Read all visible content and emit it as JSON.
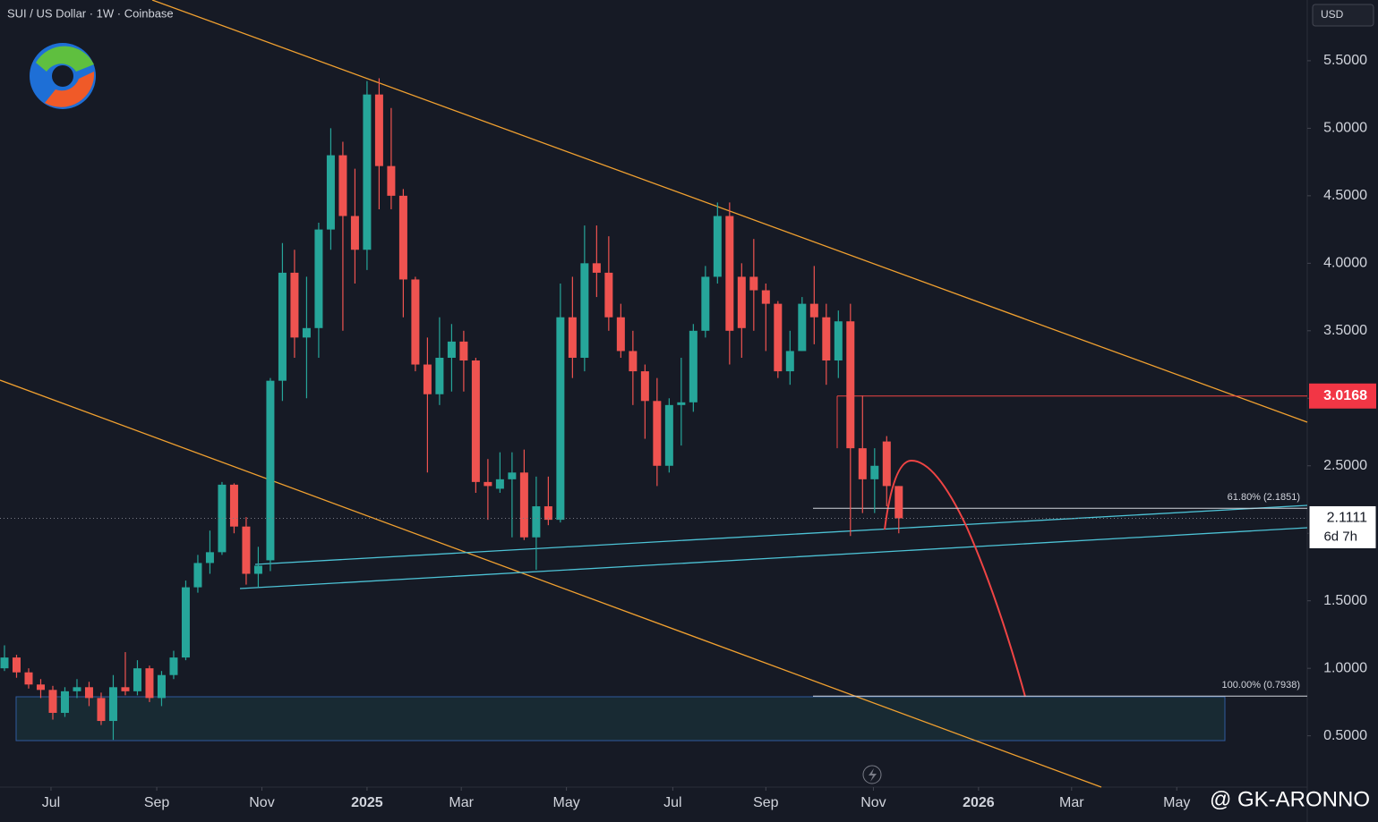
{
  "chart_data": {
    "type": "candlestick",
    "title": "SUI / US Dollar · 1W · Coinbase",
    "currency": "USD",
    "up_color": "#26a69a",
    "down_color": "#ef5350",
    "open": [
      1.0,
      1.08,
      0.97,
      0.88,
      0.84,
      0.67,
      0.83,
      0.86,
      0.78,
      0.61,
      0.86,
      0.83,
      1.0,
      0.78,
      0.95,
      1.08,
      1.6,
      1.78,
      1.86,
      2.36,
      2.05,
      1.7,
      1.8,
      3.13,
      3.93,
      3.45,
      3.52,
      4.25,
      4.8,
      4.35,
      4.1,
      5.25,
      4.72,
      4.5,
      3.88,
      3.25,
      3.03,
      3.3,
      3.42,
      3.28,
      2.38,
      2.33,
      2.4,
      2.45,
      1.97,
      2.2,
      2.1,
      3.6,
      3.3,
      4.0,
      3.93,
      3.6,
      3.35,
      3.2,
      2.98,
      2.5,
      2.95,
      2.97,
      3.5,
      3.9,
      4.35,
      3.9,
      3.9,
      3.8,
      3.7,
      3.2,
      3.35,
      3.7,
      3.6,
      3.28,
      3.57,
      2.63,
      2.4,
      2.68,
      2.35
    ],
    "high": [
      1.17,
      1.1,
      1.0,
      0.92,
      0.87,
      0.86,
      0.92,
      0.9,
      0.82,
      0.95,
      1.12,
      1.06,
      1.02,
      0.98,
      1.13,
      1.65,
      1.84,
      2.02,
      2.38,
      2.37,
      2.12,
      1.9,
      3.15,
      4.15,
      4.1,
      3.9,
      4.3,
      5.0,
      4.9,
      4.7,
      5.35,
      5.37,
      5.15,
      4.55,
      3.9,
      3.45,
      3.6,
      3.55,
      3.5,
      3.3,
      2.55,
      2.6,
      2.6,
      2.62,
      2.42,
      2.42,
      3.85,
      3.9,
      4.28,
      4.28,
      4.2,
      3.7,
      3.5,
      3.25,
      3.15,
      3.0,
      3.3,
      3.55,
      3.98,
      4.45,
      4.45,
      4.0,
      4.18,
      3.85,
      3.72,
      3.5,
      3.75,
      3.98,
      3.7,
      3.65,
      3.7,
      3.02,
      2.63,
      2.72,
      2.35
    ],
    "low": [
      0.98,
      0.93,
      0.85,
      0.78,
      0.62,
      0.64,
      0.78,
      0.72,
      0.58,
      0.47,
      0.8,
      0.8,
      0.75,
      0.72,
      0.92,
      1.06,
      1.56,
      1.7,
      1.84,
      2.0,
      1.62,
      1.6,
      1.72,
      2.98,
      3.3,
      3.0,
      3.3,
      4.1,
      3.5,
      3.85,
      3.95,
      4.4,
      4.4,
      3.6,
      3.2,
      2.45,
      2.95,
      3.05,
      3.05,
      2.3,
      2.1,
      2.3,
      1.97,
      1.95,
      1.73,
      2.06,
      2.08,
      3.15,
      3.2,
      3.75,
      3.5,
      3.3,
      2.95,
      2.7,
      2.35,
      2.45,
      2.65,
      2.9,
      3.45,
      3.85,
      3.25,
      3.3,
      3.5,
      3.35,
      3.15,
      3.1,
      3.35,
      3.4,
      3.1,
      3.15,
      1.98,
      2.15,
      2.15,
      2.2,
      2.0
    ],
    "close": [
      1.08,
      0.97,
      0.88,
      0.84,
      0.67,
      0.83,
      0.86,
      0.78,
      0.61,
      0.86,
      0.83,
      1.0,
      0.78,
      0.95,
      1.08,
      1.6,
      1.78,
      1.86,
      2.36,
      2.05,
      1.7,
      1.76,
      3.13,
      3.93,
      3.45,
      3.52,
      4.25,
      4.8,
      4.35,
      4.1,
      5.25,
      4.72,
      4.5,
      3.88,
      3.25,
      3.03,
      3.3,
      3.42,
      3.28,
      2.38,
      2.35,
      2.4,
      2.45,
      1.97,
      2.2,
      2.1,
      3.6,
      3.3,
      4.0,
      3.93,
      3.6,
      3.35,
      3.2,
      2.98,
      2.5,
      2.95,
      2.97,
      3.5,
      3.9,
      4.35,
      3.5,
      3.52,
      3.8,
      3.7,
      3.2,
      3.35,
      3.7,
      3.6,
      3.28,
      3.57,
      2.63,
      2.4,
      2.5,
      2.35,
      2.1111
    ],
    "xlim": [
      -0.37,
      107.8
    ],
    "xticks": [
      {
        "value": 3.85,
        "label": "Jul"
      },
      {
        "value": 12.6,
        "label": "Sep"
      },
      {
        "value": 21.3,
        "label": "Nov"
      },
      {
        "value": 30,
        "label": "2025"
      },
      {
        "value": 37.8,
        "label": "Mar"
      },
      {
        "value": 46.5,
        "label": "May"
      },
      {
        "value": 55.3,
        "label": "Jul"
      },
      {
        "value": 63,
        "label": "Sep"
      },
      {
        "value": 71.9,
        "label": "Nov"
      },
      {
        "value": 80.6,
        "label": "2026"
      },
      {
        "value": 88.3,
        "label": "Mar"
      },
      {
        "value": 97,
        "label": "May"
      }
    ],
    "ylim": [
      0.12,
      5.95
    ],
    "yticks": [
      {
        "value": 0.5,
        "label": "0.5000"
      },
      {
        "value": 1.0,
        "label": "1.0000"
      },
      {
        "value": 1.5,
        "label": "1.5000"
      },
      {
        "value": 2.0,
        "label": "2.0000"
      },
      {
        "value": 2.5,
        "label": "2.5000"
      },
      {
        "value": 3.0,
        "label": "3.0000"
      },
      {
        "value": 3.5,
        "label": "3.5000"
      },
      {
        "value": 4.0,
        "label": "4.0000"
      },
      {
        "value": 4.5,
        "label": "4.5000"
      },
      {
        "value": 5.0,
        "label": "5.0000"
      },
      {
        "value": 5.5,
        "label": "5.5000"
      }
    ],
    "horizontal_level": 3.0168,
    "fib_levels": [
      {
        "value": 2.1851,
        "label": "61.80% (2.1851)"
      },
      {
        "value": 0.7938,
        "label": "100.00% (0.7938)"
      }
    ],
    "last_price": 2.1111,
    "countdown": "6d 7h",
    "watermark": "@ GK-ARONNO"
  }
}
